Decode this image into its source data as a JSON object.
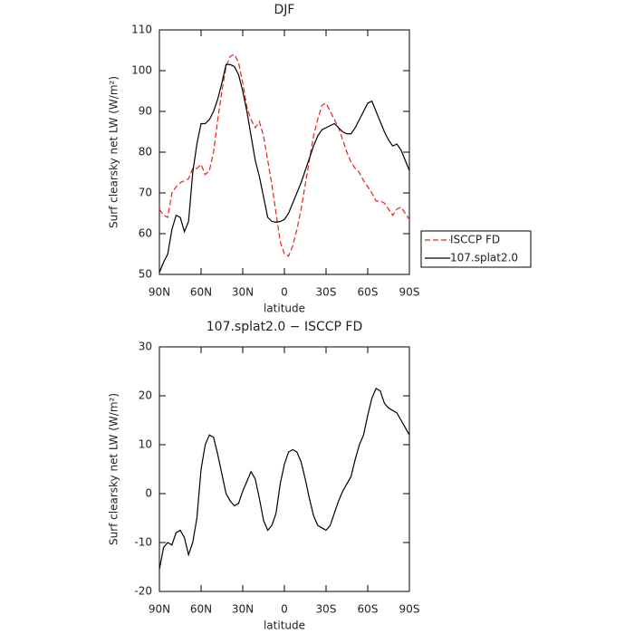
{
  "chart_data": [
    {
      "type": "line",
      "title": "DJF",
      "xlabel": "latitude",
      "ylabel": "Surf clearsky net LW (W/m²)",
      "x": [
        90,
        87,
        84,
        81,
        78,
        75,
        72,
        69,
        66,
        63,
        60,
        57,
        54,
        51,
        48,
        45,
        42,
        39,
        36,
        33,
        30,
        27,
        24,
        21,
        18,
        15,
        12,
        9,
        6,
        3,
        0,
        -3,
        -6,
        -9,
        -12,
        -15,
        -18,
        -21,
        -24,
        -27,
        -30,
        -33,
        -36,
        -39,
        -42,
        -45,
        -48,
        -51,
        -54,
        -57,
        -60,
        -63,
        -66,
        -69,
        -72,
        -75,
        -78,
        -81,
        -84,
        -87,
        -90
      ],
      "series": [
        {
          "name": "ISCCP FD",
          "color": "#e8201e",
          "dash": "dashed",
          "values": [
            66,
            64.5,
            64,
            70,
            71.5,
            72.5,
            73,
            73.5,
            76,
            76,
            77,
            74.5,
            75.5,
            80,
            88,
            95,
            101,
            103.5,
            104,
            102,
            97,
            91,
            88,
            86,
            87.5,
            84,
            78,
            72,
            65,
            58,
            55,
            54.5,
            57,
            61,
            66,
            72,
            78,
            84,
            88,
            91.5,
            92,
            90,
            88,
            86,
            83,
            80,
            77.5,
            76,
            75,
            73,
            71.5,
            70,
            68,
            68,
            67.5,
            66,
            64.5,
            66,
            66.5,
            65,
            63.5
          ]
        },
        {
          "name": "107.splat2.0",
          "color": "#000000",
          "dash": "solid",
          "values": [
            50.5,
            53,
            55,
            61,
            64.5,
            64,
            60.5,
            63,
            75,
            82,
            87,
            87,
            88,
            90,
            93,
            97,
            101.5,
            101.5,
            101,
            99,
            95,
            90,
            84,
            78,
            74,
            69,
            64,
            63,
            62.8,
            63,
            63.5,
            65,
            67.5,
            70,
            72.5,
            75.5,
            78.5,
            81.5,
            84,
            85.5,
            86,
            86.5,
            87,
            86,
            85,
            84.5,
            84.5,
            86,
            88,
            90,
            92,
            92.5,
            90,
            87.5,
            85,
            83,
            81.5,
            82,
            80.5,
            78,
            75.5
          ]
        }
      ],
      "xlim": [
        90,
        -90
      ],
      "xticks": [
        {
          "value": 90,
          "label": "90N"
        },
        {
          "value": 60,
          "label": "60N"
        },
        {
          "value": 30,
          "label": "30N"
        },
        0,
        {
          "value": -30,
          "label": "30S"
        },
        {
          "value": -60,
          "label": "60S"
        },
        {
          "value": -90,
          "label": "90S"
        }
      ],
      "ylim": [
        50,
        110
      ],
      "yticks": [
        50,
        60,
        70,
        80,
        90,
        100,
        110
      ],
      "legend": "right"
    },
    {
      "type": "line",
      "title": "107.splat2.0 − ISCCP FD",
      "xlabel": "latitude",
      "ylabel": "Surf clearsky net LW (W/m²)",
      "x": [
        90,
        87,
        84,
        81,
        78,
        75,
        72,
        69,
        66,
        63,
        60,
        57,
        54,
        51,
        48,
        45,
        42,
        39,
        36,
        33,
        30,
        27,
        24,
        21,
        18,
        15,
        12,
        9,
        6,
        3,
        0,
        -3,
        -6,
        -9,
        -12,
        -15,
        -18,
        -21,
        -24,
        -27,
        -30,
        -33,
        -36,
        -39,
        -42,
        -45,
        -48,
        -51,
        -54,
        -57,
        -60,
        -63,
        -66,
        -69,
        -72,
        -75,
        -78,
        -81,
        -84,
        -87,
        -90
      ],
      "values": [
        -15.5,
        -11,
        -10,
        -10.5,
        -8,
        -7.5,
        -9,
        -12.5,
        -10,
        -5,
        5,
        10,
        12,
        11.5,
        8,
        4,
        0,
        -1.5,
        -2.5,
        -2,
        0.5,
        2.5,
        4.5,
        3,
        -1,
        -5.5,
        -7.5,
        -6.5,
        -4,
        2,
        6,
        8.5,
        9,
        8.5,
        6.5,
        3,
        -1,
        -4.5,
        -6.5,
        -7,
        -7.5,
        -6.5,
        -4,
        -1.5,
        0.5,
        2,
        3.5,
        7,
        10,
        12,
        16,
        19.5,
        21.5,
        21,
        18.5,
        17.5,
        17,
        16.5,
        15,
        13.5,
        12
      ],
      "color": "#000000",
      "xlim": [
        90,
        -90
      ],
      "xticks": [
        {
          "value": 90,
          "label": "90N"
        },
        {
          "value": 60,
          "label": "60N"
        },
        {
          "value": 30,
          "label": "30N"
        },
        0,
        {
          "value": -30,
          "label": "30S"
        },
        {
          "value": -60,
          "label": "60S"
        },
        {
          "value": -90,
          "label": "90S"
        }
      ],
      "ylim": [
        -20,
        30
      ],
      "yticks": [
        -20,
        -10,
        0,
        10,
        20,
        30
      ]
    }
  ]
}
